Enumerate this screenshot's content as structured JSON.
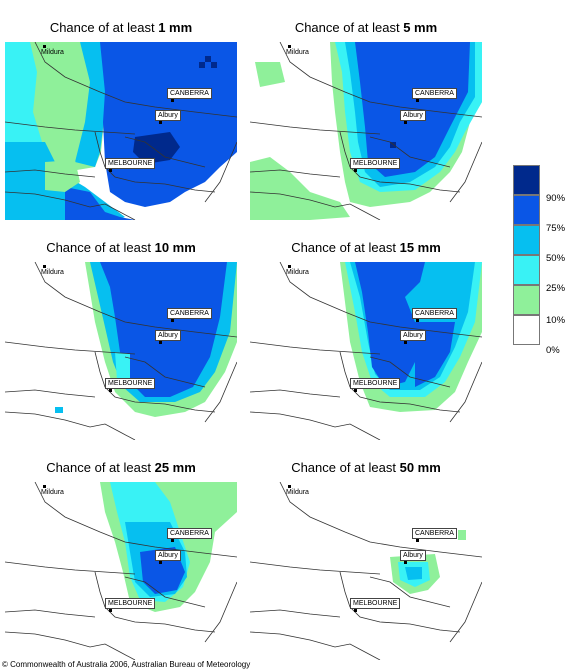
{
  "panels": [
    {
      "prefix": "Chance of at least ",
      "amount": "1 mm"
    },
    {
      "prefix": "Chance of at least ",
      "amount": "5 mm"
    },
    {
      "prefix": "Chance of at least ",
      "amount": "10 mm"
    },
    {
      "prefix": "Chance of at least ",
      "amount": "15 mm"
    },
    {
      "prefix": "Chance of at least ",
      "amount": "25 mm"
    },
    {
      "prefix": "Chance of at least ",
      "amount": "50 mm"
    }
  ],
  "places": {
    "mildura": "Mildura",
    "canberra": "CANBERRA",
    "albury": "Albury",
    "melbourne": "MELBOURNE"
  },
  "legend": {
    "labels": [
      "90%",
      "75%",
      "50%",
      "25%",
      "10%",
      "0%"
    ],
    "colors": [
      "#00298c",
      "#0a56e6",
      "#06bff0",
      "#39f2f5",
      "#8ff09a",
      "#ffffff"
    ]
  },
  "copyright": "© Commonwealth of Australia 2006, Australian Bureau of Meteorology"
}
